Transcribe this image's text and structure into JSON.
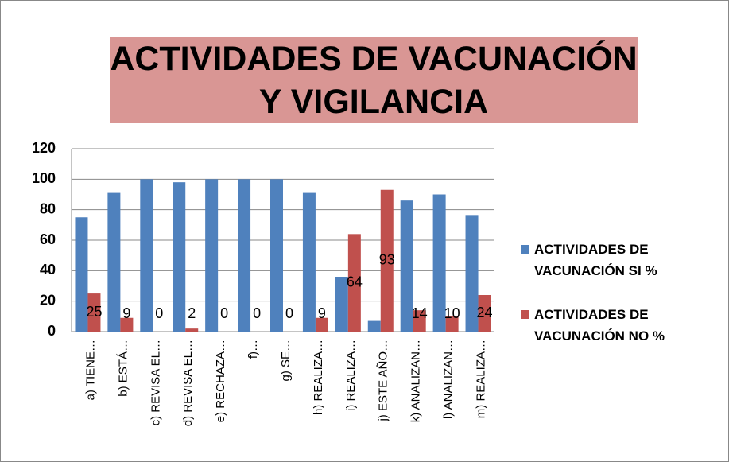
{
  "chart_data": {
    "type": "bar",
    "title": "ACTIVIDADES DE VACUNACIÓN Y VIGILANCIA",
    "categories": [
      "a) TIENE…",
      "b) ESTÁ…",
      "c) REVISA EL…",
      "d) REVISA EL…",
      "e) RECHAZA…",
      "f)…",
      "g) SE…",
      "h) REALIZA…",
      "i) REALIZA…",
      "j) ESTE AÑO…",
      "k) ANALIZAN…",
      "l) ANALIZAN…",
      "m) REALIZA…"
    ],
    "series": [
      {
        "name": "ACTIVIDADES DE VACUNACIÓN SI %",
        "color": "#4f81bd",
        "values": [
          75,
          91,
          100,
          98,
          100,
          100,
          100,
          91,
          36,
          7,
          86,
          90,
          76
        ]
      },
      {
        "name": "ACTIVIDADES DE VACUNACIÓN NO %",
        "color": "#c0504d",
        "values": [
          25,
          9,
          0,
          2,
          0,
          0,
          0,
          9,
          64,
          93,
          14,
          10,
          24
        ],
        "data_labels": true
      }
    ],
    "ylim": [
      0,
      120
    ],
    "yticks": [
      0,
      20,
      40,
      60,
      80,
      100,
      120
    ],
    "grid": true,
    "legend": "right"
  }
}
